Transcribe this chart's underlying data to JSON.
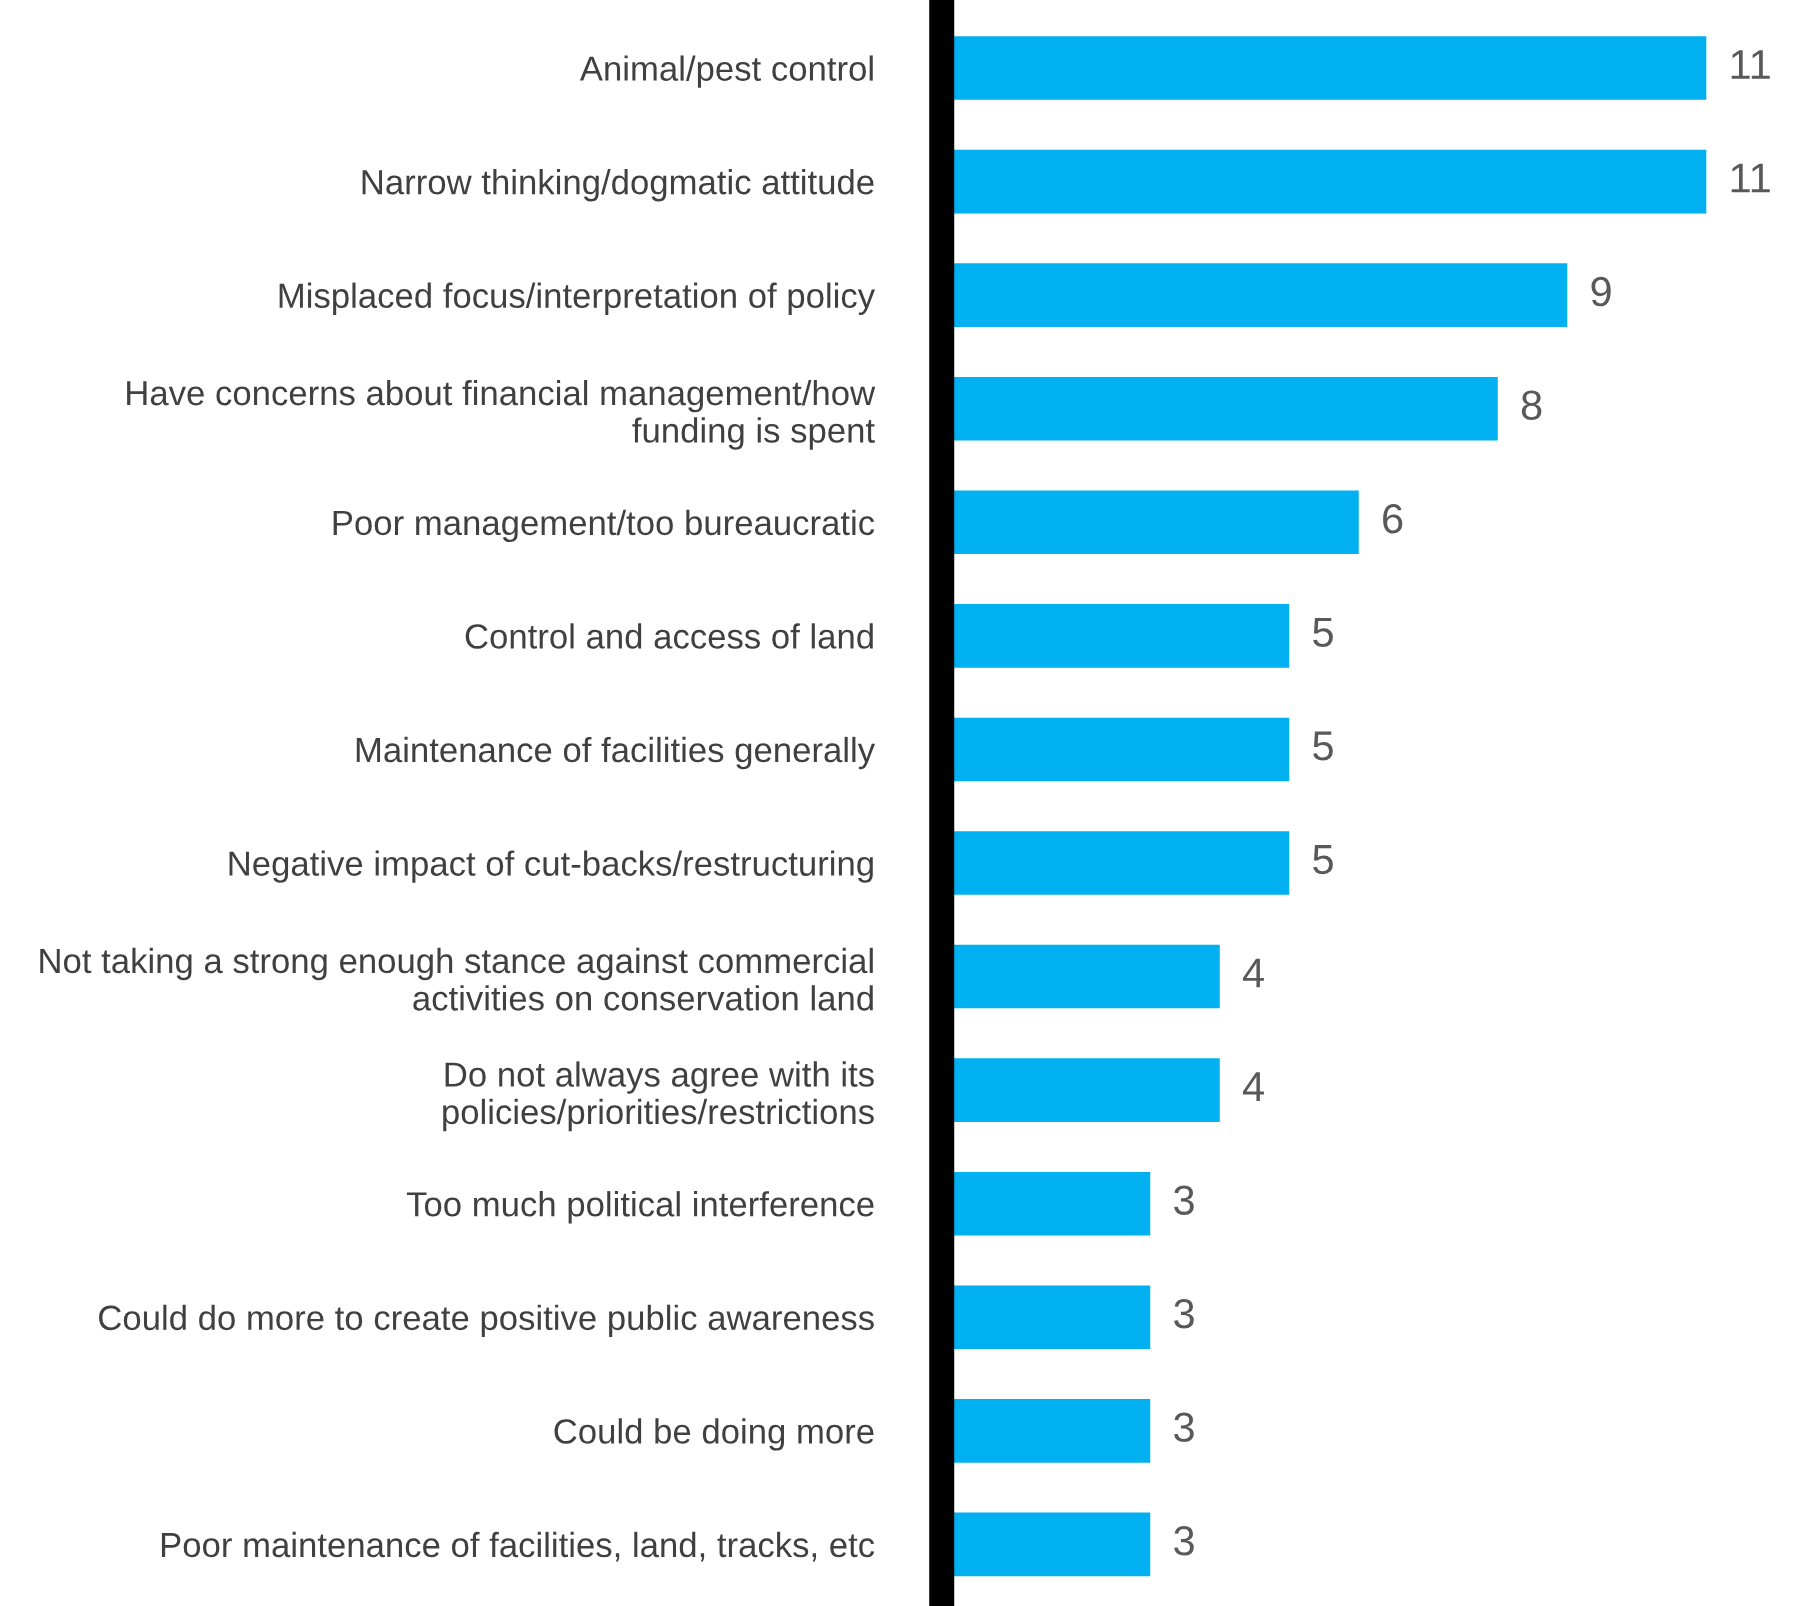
{
  "chart_data": {
    "type": "bar",
    "orientation": "horizontal",
    "data_labels": true,
    "grid": false,
    "legend": false,
    "tick_labels": "y",
    "categories": [
      "Animal/pest control",
      "Narrow thinking/dogmatic attitude",
      "Misplaced focus/interpretation of policy",
      "Have concerns about financial management/how\nfunding is spent",
      "Poor management/too bureaucratic",
      "Control and access of land",
      "Maintenance of facilities generally",
      "Negative impact of cut-backs/restructuring",
      "Not taking a strong enough stance against commercial\nactivities on conservation land",
      "Do not always agree with its\npolicies/priorities/restrictions",
      "Too much political interference",
      "Could do more to create positive public awareness",
      "Could be doing more",
      "Poor maintenance of facilities, land, tracks, etc"
    ],
    "values": [
      11,
      11,
      9,
      8,
      6,
      5,
      5,
      5,
      4,
      4,
      3,
      3,
      3,
      3
    ],
    "color": "#00b0f0"
  }
}
